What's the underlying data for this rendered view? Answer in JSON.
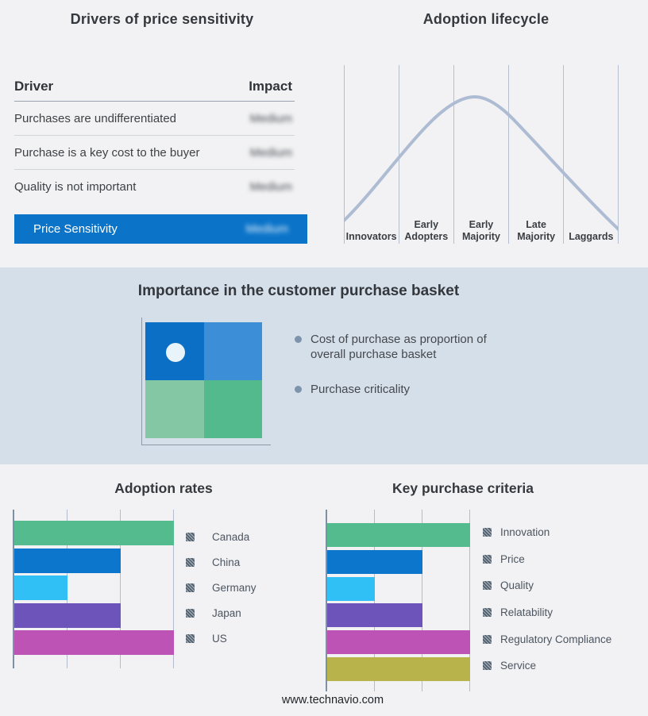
{
  "page": {
    "background": "#f2f2f4",
    "band_background": "#d5dfe9",
    "footer_url": "www.technavio.com"
  },
  "drivers_panel": {
    "title": "Drivers of price sensitivity",
    "columns": {
      "driver": "Driver",
      "impact": "Impact"
    },
    "rows": [
      {
        "driver": "Purchases are undifferentiated",
        "impact": "Medium"
      },
      {
        "driver": "Purchase is a key cost to the buyer",
        "impact": "Medium"
      },
      {
        "driver": "Quality is not important",
        "impact": "Medium"
      }
    ],
    "summary": {
      "label": "Price Sensitivity",
      "impact": "Medium"
    },
    "summary_color": "#0b74c9",
    "impact_values_blurred": true
  },
  "lifecycle_panel": {
    "title": "Adoption lifecycle",
    "stages": [
      {
        "line1": "Innovators",
        "line2": ""
      },
      {
        "line1": "Early",
        "line2": "Adopters"
      },
      {
        "line1": "Early",
        "line2": "Majority"
      },
      {
        "line1": "Late",
        "line2": "Majority"
      },
      {
        "line1": "Laggards",
        "line2": ""
      }
    ],
    "curve_color": "#adbcd3",
    "divider_color": "#b6bfce"
  },
  "basket_panel": {
    "title": "Importance in the customer purchase basket",
    "bullets": [
      "Cost of purchase as proportion of overall purchase basket",
      "Purchase criticality"
    ],
    "quadrant": {
      "top_left": "#0c6fc6",
      "top_right": "#3c8ed7",
      "bottom_left": "#83c7a4",
      "bottom_right": "#53ba8d",
      "marker": "#e9f3fa"
    }
  },
  "chart_data": [
    {
      "type": "line",
      "title": "Adoption lifecycle",
      "x_categories": [
        "Innovators",
        "Early Adopters",
        "Early Majority",
        "Late Majority",
        "Laggards"
      ],
      "shape": "bell curve rising from Innovators, peaking at Early Majority, falling to Laggards",
      "grid": "vertical stage dividers",
      "legend": "none",
      "line_color": "#adbcd3"
    },
    {
      "type": "bar",
      "orientation": "horizontal",
      "title": "Adoption rates",
      "categories": [
        "Canada",
        "China",
        "Germany",
        "Japan",
        "US"
      ],
      "values": [
        3,
        2,
        1,
        2,
        3
      ],
      "xlim": [
        0,
        3
      ],
      "grid": "vertical",
      "legend_position": "right",
      "colors": [
        "#54bb8e",
        "#0b76cb",
        "#31c0f5",
        "#6d54ba",
        "#bd53b4"
      ]
    },
    {
      "type": "bar",
      "orientation": "horizontal",
      "title": "Key purchase criteria",
      "categories": [
        "Innovation",
        "Price",
        "Quality",
        "Relatability",
        "Regulatory Compliance",
        "Service"
      ],
      "values": [
        3,
        2,
        1,
        2,
        3,
        3
      ],
      "xlim": [
        0,
        3
      ],
      "grid": "vertical",
      "legend_position": "right",
      "colors": [
        "#54bb8e",
        "#0b76cb",
        "#31c0f5",
        "#6d54ba",
        "#bd53b4",
        "#b9b34c"
      ]
    }
  ]
}
